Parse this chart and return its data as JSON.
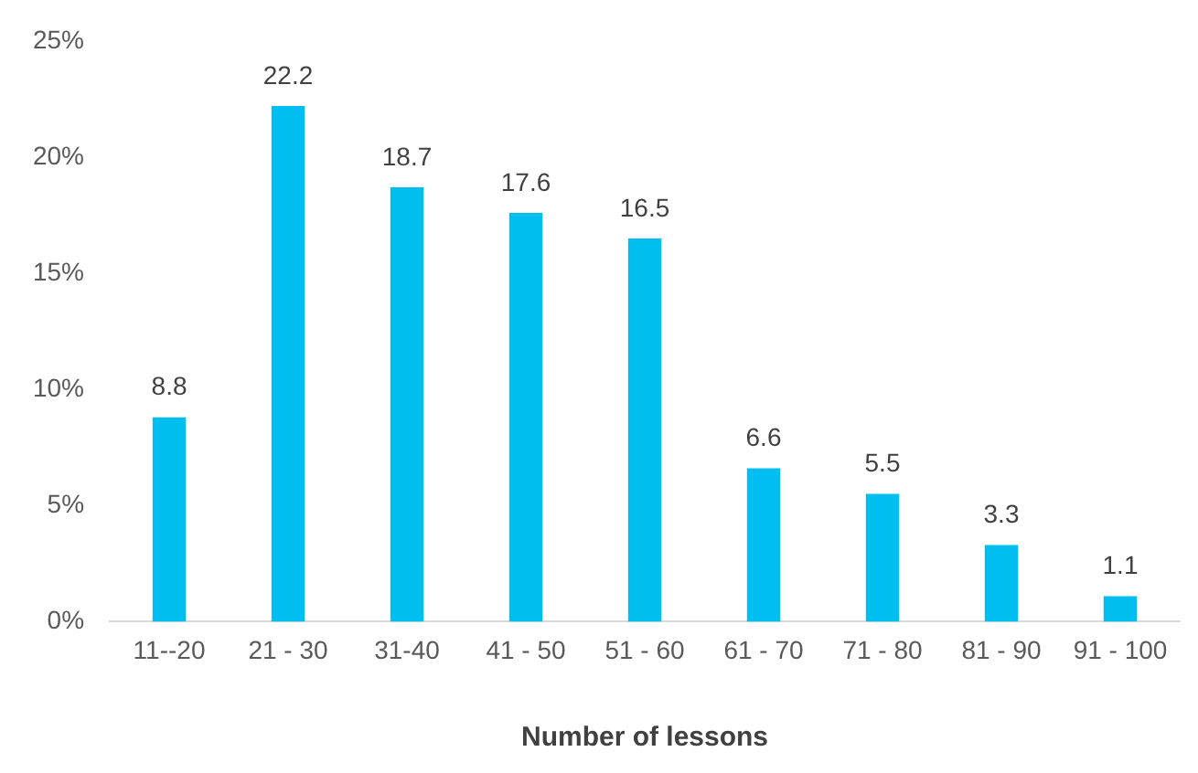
{
  "chart_data": {
    "type": "bar",
    "xlabel": "Number of lessons",
    "categories": [
      "11--20",
      "21 - 30",
      "31-40",
      "41 - 50",
      "51 - 60",
      "61 - 70",
      "71 - 80",
      "81 - 90",
      "91 - 100"
    ],
    "values": [
      8.8,
      22.2,
      18.7,
      17.6,
      16.5,
      6.6,
      5.5,
      3.3,
      1.1
    ],
    "color": "#00bff0",
    "ylim": [
      0,
      25
    ],
    "yticks": [
      {
        "value": 0,
        "label": "0%"
      },
      {
        "value": 5,
        "label": "5%"
      },
      {
        "value": 10,
        "label": "10%"
      },
      {
        "value": 15,
        "label": "15%"
      },
      {
        "value": 20,
        "label": "20%"
      },
      {
        "value": 25,
        "label": "25%"
      }
    ],
    "data_labels": true,
    "grid": false,
    "legend": false
  }
}
